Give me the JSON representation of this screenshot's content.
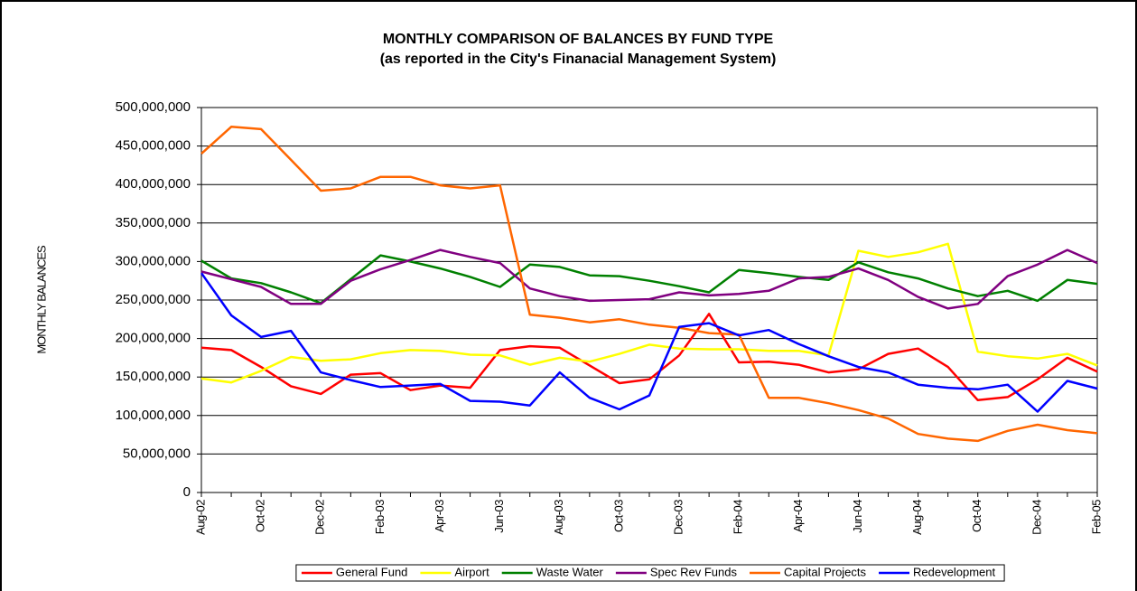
{
  "chart_data": {
    "type": "line",
    "title": "MONTHLY COMPARISON OF BALANCES BY FUND TYPE",
    "subtitle": "(as reported in the City's Finanacial Management System)",
    "y_label": "MONTHLY BALANCES",
    "categories": [
      "Aug-02",
      null,
      "Oct-02",
      null,
      "Dec-02",
      null,
      "Feb-03",
      null,
      "Apr-03",
      null,
      "Jun-03",
      null,
      "Aug-03",
      null,
      "Oct-03",
      null,
      "Dec-03",
      null,
      "Feb-04",
      null,
      "Apr-04",
      null,
      "Jun-04",
      null,
      "Aug-04",
      null,
      "Oct-04",
      null,
      "Dec-04",
      null,
      "Feb-05"
    ],
    "ylim": [
      0,
      500000000
    ],
    "yticks": [
      0,
      {
        "value": 50000000,
        "label": "50,000,000"
      },
      {
        "value": 100000000,
        "label": "100,000,000"
      },
      {
        "value": 150000000,
        "label": "150,000,000"
      },
      {
        "value": 200000000,
        "label": "200,000,000"
      },
      {
        "value": 250000000,
        "label": "250,000,000"
      },
      {
        "value": 300000000,
        "label": "300,000,000"
      },
      {
        "value": 350000000,
        "label": "350,000,000"
      },
      {
        "value": 400000000,
        "label": "400,000,000"
      },
      {
        "value": 450000000,
        "label": "450,000,000"
      },
      {
        "value": 500000000,
        "label": "500,000,000"
      }
    ],
    "grid": true,
    "legend": "bottom",
    "series": [
      {
        "name": "General Fund",
        "color": "#ff0000",
        "values": [
          188000000,
          185000000,
          163000000,
          138000000,
          128000000,
          153000000,
          155000000,
          133000000,
          139000000,
          136000000,
          185000000,
          190000000,
          188000000,
          165000000,
          142000000,
          147000000,
          178000000,
          232000000,
          169000000,
          170000000,
          166000000,
          156000000,
          160000000,
          180000000,
          187000000,
          163000000,
          120000000,
          124000000,
          147000000,
          175000000,
          157000000
        ]
      },
      {
        "name": "Airport",
        "color": "#ffff00",
        "values": [
          148000000,
          143000000,
          158000000,
          176000000,
          171000000,
          173000000,
          181000000,
          185000000,
          184000000,
          179000000,
          178000000,
          166000000,
          175000000,
          170000000,
          180000000,
          192000000,
          187000000,
          186000000,
          186000000,
          184000000,
          184000000,
          178000000,
          314000000,
          306000000,
          312000000,
          323000000,
          183000000,
          177000000,
          174000000,
          180000000,
          165000000
        ]
      },
      {
        "name": "Waste Water",
        "color": "#008000",
        "values": [
          301000000,
          278000000,
          272000000,
          260000000,
          246000000,
          277000000,
          308000000,
          300000000,
          291000000,
          280000000,
          267000000,
          296000000,
          293000000,
          282000000,
          281000000,
          275000000,
          268000000,
          260000000,
          289000000,
          285000000,
          280000000,
          276000000,
          299000000,
          286000000,
          278000000,
          265000000,
          255000000,
          262000000,
          249000000,
          276000000,
          271000000
        ]
      },
      {
        "name": "Spec Rev Funds",
        "color": "#800080",
        "values": [
          287000000,
          277000000,
          267000000,
          245000000,
          245000000,
          275000000,
          290000000,
          302000000,
          315000000,
          306000000,
          298000000,
          265000000,
          255000000,
          249000000,
          250000000,
          251000000,
          260000000,
          256000000,
          258000000,
          262000000,
          278000000,
          280000000,
          291000000,
          276000000,
          254000000,
          239000000,
          245000000,
          281000000,
          296000000,
          315000000,
          298000000
        ]
      },
      {
        "name": "Capital Projects",
        "color": "#ff6600",
        "values": [
          440000000,
          475000000,
          472000000,
          432000000,
          392000000,
          395000000,
          410000000,
          410000000,
          399000000,
          395000000,
          399000000,
          231000000,
          227000000,
          221000000,
          225000000,
          218000000,
          214000000,
          207000000,
          205000000,
          123000000,
          123000000,
          116000000,
          107000000,
          96000000,
          76000000,
          70000000,
          67000000,
          80000000,
          88000000,
          81000000,
          77000000
        ]
      },
      {
        "name": "Redevelopment",
        "color": "#0000ff",
        "values": [
          285000000,
          230000000,
          202000000,
          210000000,
          156000000,
          146000000,
          137000000,
          139000000,
          141000000,
          119000000,
          118000000,
          113000000,
          156000000,
          123000000,
          108000000,
          126000000,
          215000000,
          220000000,
          204000000,
          211000000,
          193000000,
          177000000,
          163000000,
          156000000,
          140000000,
          136000000,
          134000000,
          140000000,
          105000000,
          145000000,
          135000000
        ]
      }
    ]
  }
}
